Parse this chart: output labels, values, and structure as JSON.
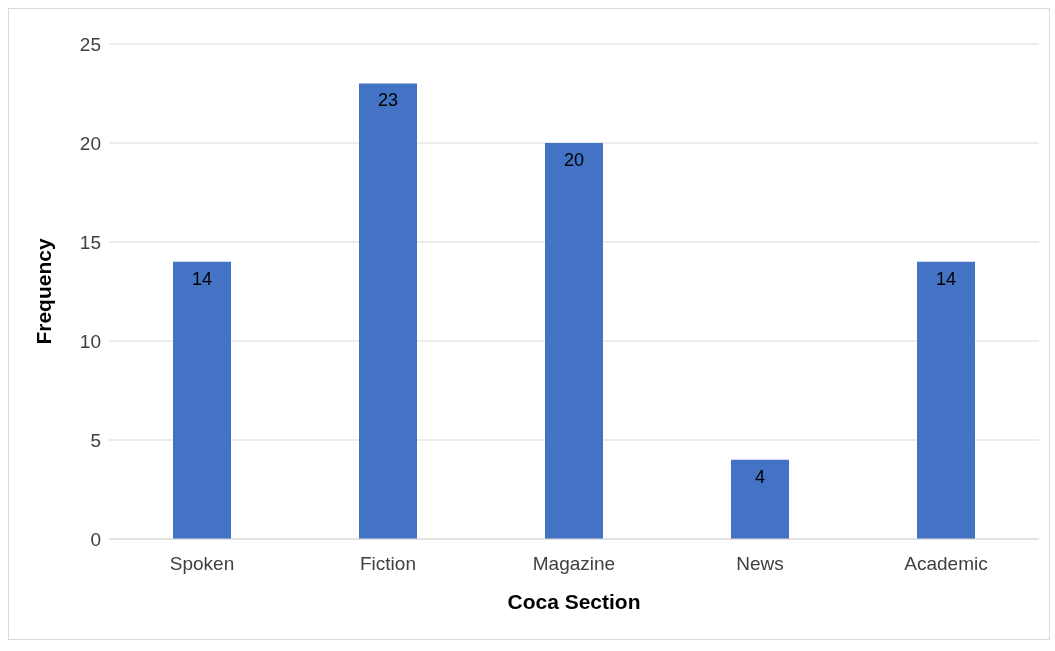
{
  "chart_data": {
    "type": "bar",
    "xlabel": "Coca Section",
    "ylabel": "Frequency",
    "categories": [
      "Spoken",
      "Fiction",
      "Magazine",
      "News",
      "Academic"
    ],
    "values": [
      14,
      23,
      20,
      4,
      14
    ],
    "color": "#4472c4",
    "ylim": [
      0,
      25
    ],
    "yticks": [
      0,
      5,
      10,
      15,
      20,
      25
    ],
    "grid": "y",
    "data_labels": true
  }
}
